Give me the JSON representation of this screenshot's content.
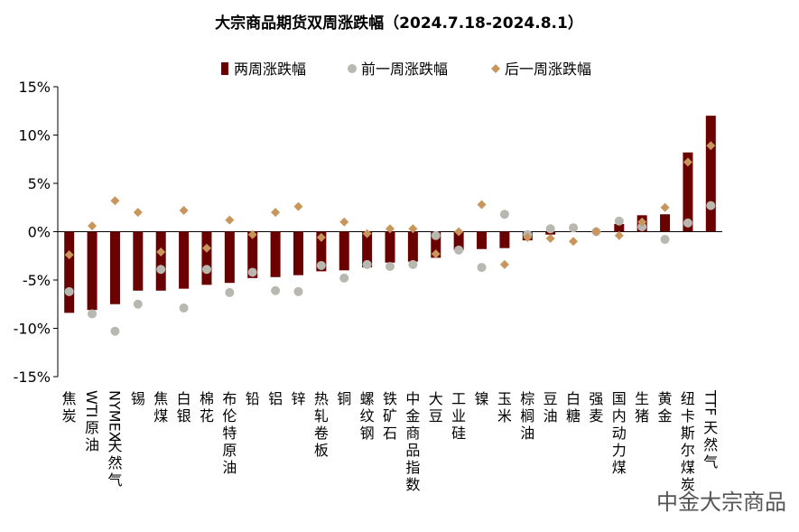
{
  "chart_data": {
    "type": "bar",
    "title": "大宗商品期货双周涨跌幅（2024.7.18-2024.8.1）",
    "ylim": [
      -15,
      15
    ],
    "yticks": [
      "15%",
      "10%",
      "5%",
      "0%",
      "-5%",
      "-10%",
      "-15%"
    ],
    "legend_position": "top",
    "categories": [
      "焦炭",
      "WTI原油",
      "NYMEX天然气",
      "锡",
      "焦煤",
      "白银",
      "棉花",
      "布伦特原油",
      "铅",
      "铝",
      "锌",
      "热轧卷板",
      "铜",
      "螺纹钢",
      "铁矿石",
      "中金商品指数",
      "大豆",
      "工业硅",
      "镍",
      "玉米",
      "棕榈油",
      "豆油",
      "白糖",
      "强麦",
      "国内动力煤",
      "生猪",
      "黄金",
      "纽卡斯尔煤炭",
      "TTF天然气"
    ],
    "series": [
      {
        "name": "两周涨跌幅",
        "kind": "bar",
        "color": "#6B0000",
        "values": [
          -8.4,
          -8.1,
          -7.5,
          -6.1,
          -6.1,
          -5.9,
          -5.5,
          -5.3,
          -4.8,
          -4.7,
          -4.5,
          -4.1,
          -4.0,
          -3.7,
          -3.2,
          -3.1,
          -2.7,
          -1.9,
          -1.8,
          -1.7,
          -0.9,
          -0.3,
          0.0,
          0.0,
          0.8,
          1.7,
          1.8,
          8.2,
          12.0
        ]
      },
      {
        "name": "前一周涨跌幅",
        "kind": "dot",
        "color": "#B8B8B0",
        "values": [
          -6.2,
          -8.5,
          -10.3,
          -7.5,
          -3.9,
          -7.9,
          -3.9,
          -6.3,
          -4.2,
          -6.1,
          -6.2,
          -3.5,
          -4.8,
          -3.4,
          -3.6,
          -3.4,
          -0.4,
          -1.9,
          -3.7,
          1.8,
          -0.3,
          0.3,
          0.4,
          0.0,
          1.1,
          0.5,
          -0.8,
          0.9,
          2.7
        ]
      },
      {
        "name": "后一周涨跌幅",
        "kind": "diamond",
        "color": "#C8955A",
        "values": [
          -2.4,
          0.6,
          3.2,
          2.0,
          -2.1,
          2.2,
          -1.7,
          1.2,
          -0.3,
          2.0,
          2.6,
          -0.6,
          1.0,
          -0.2,
          0.3,
          0.3,
          -2.3,
          0.0,
          2.8,
          -3.4,
          -0.6,
          -0.7,
          -1.0,
          0.0,
          -0.4,
          1.0,
          2.5,
          7.2,
          8.9
        ]
      }
    ]
  },
  "watermark": "中金大宗商品"
}
